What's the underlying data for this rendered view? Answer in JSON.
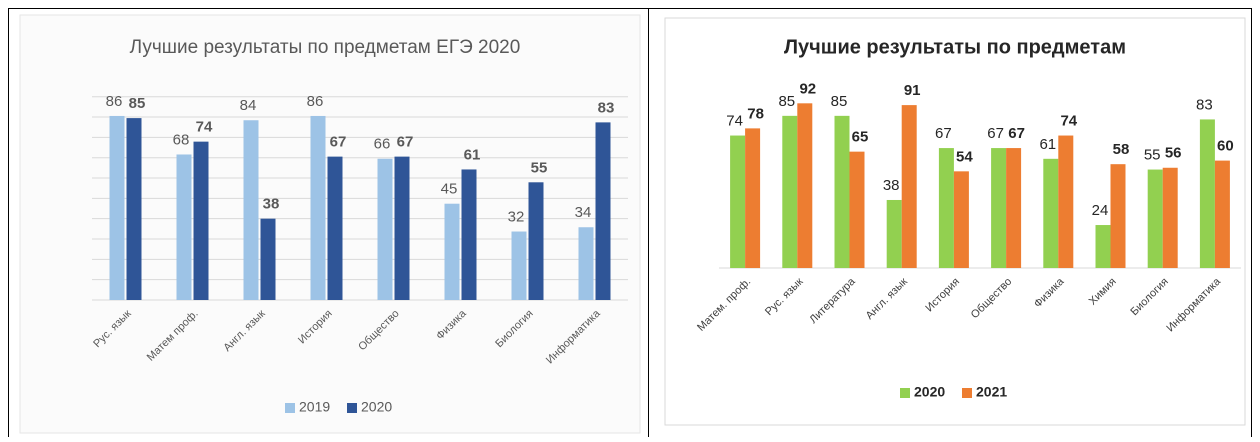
{
  "chart_data": [
    {
      "type": "bar",
      "title": "Лучшие результаты по предметам ЕГЭ 2020",
      "categories": [
        "Рус. язык",
        "Матем проф.",
        "Англ. язык",
        "История",
        "Общество",
        "Физика",
        "Биология",
        "Информатика"
      ],
      "series": [
        {
          "name": "2019",
          "color": "#9dc3e6",
          "values": [
            86,
            68,
            84,
            86,
            66,
            45,
            32,
            34
          ]
        },
        {
          "name": "2020",
          "color": "#2f5597",
          "values": [
            85,
            74,
            38,
            67,
            67,
            61,
            55,
            83
          ]
        }
      ],
      "ylim": [
        0,
        100
      ],
      "grid": true
    },
    {
      "type": "bar",
      "title": "Лучшие результаты по предметам",
      "categories": [
        "Матем. проф.",
        "Рус. язык",
        "Литература",
        "Англ. язык",
        "История",
        "Общество",
        "Физика",
        "Химия",
        "Биология",
        "Информатика"
      ],
      "series": [
        {
          "name": "2020",
          "color": "#92d050",
          "values": [
            74,
            85,
            85,
            38,
            67,
            67,
            61,
            24,
            55,
            83
          ]
        },
        {
          "name": "2021",
          "color": "#ed7d31",
          "values": [
            78,
            92,
            65,
            91,
            54,
            67,
            74,
            58,
            56,
            60
          ]
        }
      ],
      "ylim": [
        0,
        100
      ],
      "grid": false
    }
  ]
}
